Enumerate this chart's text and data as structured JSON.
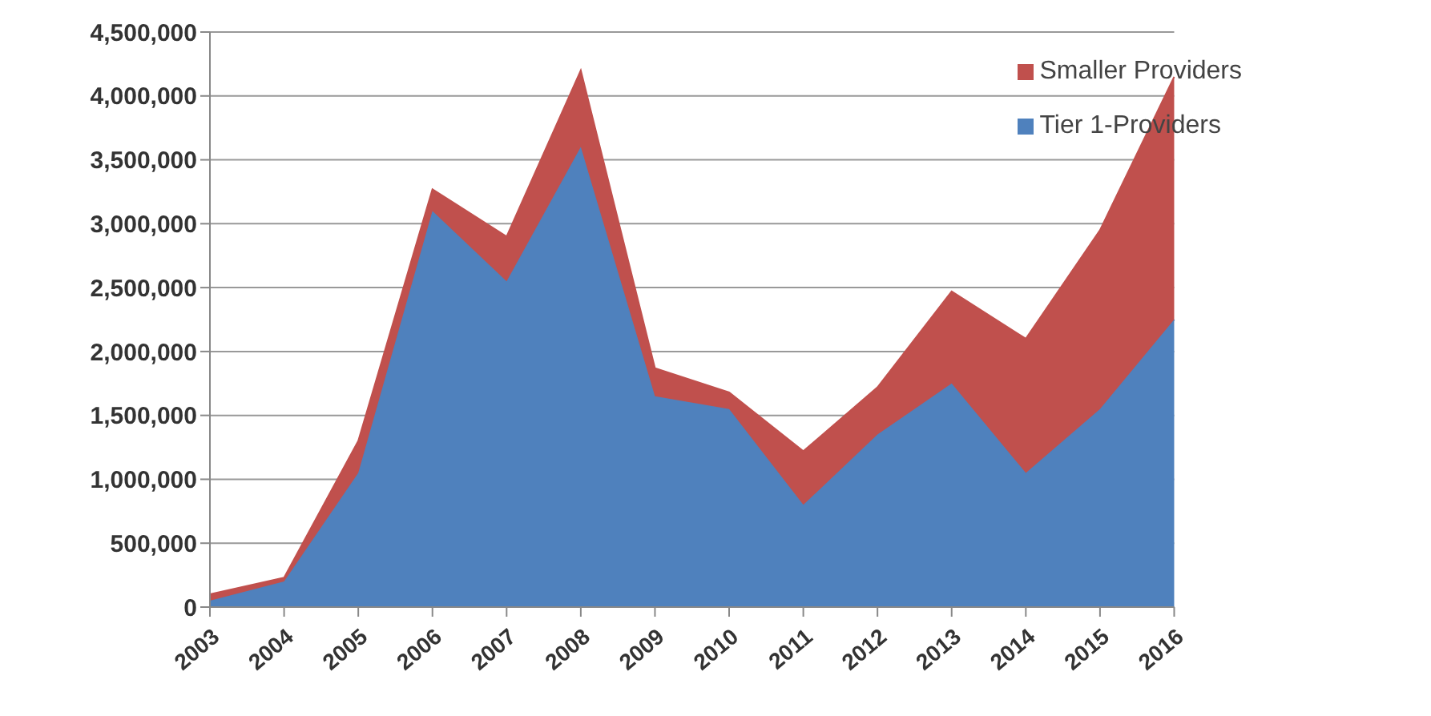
{
  "chart_data": {
    "type": "area",
    "stacked": true,
    "categories": [
      "2003",
      "2004",
      "2005",
      "2006",
      "2007",
      "2008",
      "2009",
      "2010",
      "2011",
      "2012",
      "2013",
      "2014",
      "2015",
      "2016"
    ],
    "series": [
      {
        "name": "Tier 1-Providers",
        "color": "#4f81bd",
        "values": [
          50000,
          200000,
          1050000,
          3100000,
          2550000,
          3600000,
          1650000,
          1550000,
          800000,
          1350000,
          1750000,
          1050000,
          1550000,
          2250000
        ]
      },
      {
        "name": "Smaller Providers",
        "color": "#c0504d",
        "values": [
          50000,
          30000,
          250000,
          170000,
          350000,
          600000,
          220000,
          130000,
          420000,
          370000,
          720000,
          1050000,
          1400000,
          1900000
        ]
      }
    ],
    "ylim": [
      0,
      4500000
    ],
    "yticks": [
      0,
      {
        "value": 500000,
        "label": "500,000"
      },
      {
        "value": 1000000,
        "label": "1,000,000"
      },
      {
        "value": 1500000,
        "label": "1,500,000"
      },
      {
        "value": 2000000,
        "label": "2,000,000"
      },
      {
        "value": 2500000,
        "label": "2,500,000"
      },
      {
        "value": 3000000,
        "label": "3,000,000"
      },
      {
        "value": 3500000,
        "label": "3,500,000"
      },
      {
        "value": 4000000,
        "label": "4,000,000"
      },
      {
        "value": 4500000,
        "label": "4,500,000"
      }
    ],
    "grid": "y",
    "legend": "top right"
  }
}
